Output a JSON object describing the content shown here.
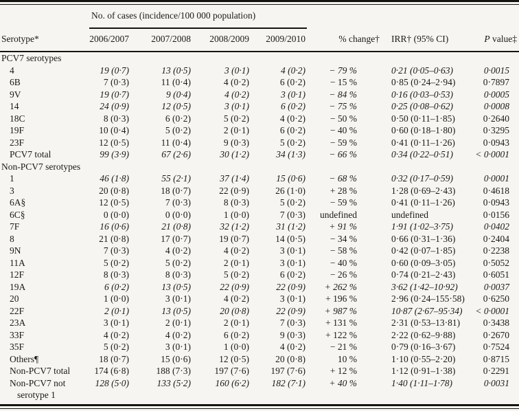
{
  "table": {
    "spanner": "No. of cases (incidence/100 000 population)",
    "columns": [
      "Serotype*",
      "2006/2007",
      "2007/2008",
      "2008/2009",
      "2009/2010",
      "% change†",
      "IRR† (95% CI)",
      "P value‡"
    ],
    "sections": [
      {
        "title": "PCV7 serotypes",
        "rows": [
          {
            "label": "4",
            "y": [
              "19 (0·7)",
              "13 (0·5)",
              "3 (0·1)",
              "4 (0·2)"
            ],
            "pct": "− 79 %",
            "irr": "0·21 (0·05–0·63)",
            "p": "0·0015",
            "sig": true
          },
          {
            "label": "6B",
            "y": [
              "7 (0·3)",
              "11 (0·4)",
              "4 (0·2)",
              "6 (0·2)"
            ],
            "pct": "− 15 %",
            "irr": "0·85 (0·24–2·94)",
            "p": "0·7897",
            "sig": false
          },
          {
            "label": "9V",
            "y": [
              "19 (0·7)",
              "9 (0·4)",
              "4 (0·2)",
              "3 (0·1)"
            ],
            "pct": "− 84 %",
            "irr": "0·16 (0·03–0·53)",
            "p": "0·0005",
            "sig": true
          },
          {
            "label": "14",
            "y": [
              "24 (0·9)",
              "12 (0·5)",
              "3 (0·1)",
              "6 (0·2)"
            ],
            "pct": "− 75 %",
            "irr": "0·25 (0·08–0·62)",
            "p": "0·0008",
            "sig": true
          },
          {
            "label": "18C",
            "y": [
              "8 (0·3)",
              "6 (0·2)",
              "5 (0·2)",
              "4 (0·2)"
            ],
            "pct": "− 50 %",
            "irr": "0·50 (0·11–1·85)",
            "p": "0·2640",
            "sig": false
          },
          {
            "label": "19F",
            "y": [
              "10 (0·4)",
              "5 (0·2)",
              "2 (0·1)",
              "6 (0·2)"
            ],
            "pct": "− 40 %",
            "irr": "0·60 (0·18–1·80)",
            "p": "0·3295",
            "sig": false
          },
          {
            "label": "23F",
            "y": [
              "12 (0·5)",
              "11 (0·4)",
              "9 (0·3)",
              "5 (0·2)"
            ],
            "pct": "− 59 %",
            "irr": "0·41 (0·11–1·26)",
            "p": "0·0943",
            "sig": false
          },
          {
            "label": "PCV7 total",
            "y": [
              "99 (3·9)",
              "67 (2·6)",
              "30 (1·2)",
              "34 (1·3)"
            ],
            "pct": "− 66 %",
            "irr": "0·34 (0·22–0·51)",
            "p": "< 0·0001",
            "sig": true
          }
        ]
      },
      {
        "title": "Non-PCV7 serotypes",
        "rows": [
          {
            "label": "1",
            "y": [
              "46 (1·8)",
              "55 (2·1)",
              "37 (1·4)",
              "15 (0·6)"
            ],
            "pct": "− 68 %",
            "irr": "0·32 (0·17–0·59)",
            "p": "0·0001",
            "sig": true
          },
          {
            "label": "3",
            "y": [
              "20 (0·8)",
              "18 (0·7)",
              "22 (0·9)",
              "26 (1·0)"
            ],
            "pct": "+ 28 %",
            "irr": "1·28 (0·69–2·43)",
            "p": "0·4618",
            "sig": false
          },
          {
            "label": "6A§",
            "y": [
              "12 (0·5)",
              "7 (0·3)",
              "8 (0·3)",
              "5 (0·2)"
            ],
            "pct": "− 59 %",
            "irr": "0·41 (0·11–1·26)",
            "p": "0·0943",
            "sig": false
          },
          {
            "label": "6C§",
            "y": [
              "0 (0·0)",
              "0 (0·0)",
              "1 (0·0)",
              "7 (0·3)"
            ],
            "pct": "undefined",
            "irr": "undefined",
            "p": "0·0156",
            "sig": false
          },
          {
            "label": "7F",
            "y": [
              "16 (0·6)",
              "21 (0·8)",
              "32 (1·2)",
              "31 (1·2)"
            ],
            "pct": "+ 91 %",
            "irr": "1·91 (1·02–3·75)",
            "p": "0·0402",
            "sig": true
          },
          {
            "label": "8",
            "y": [
              "21 (0·8)",
              "17 (0·7)",
              "19 (0·7)",
              "14 (0·5)"
            ],
            "pct": "− 34 %",
            "irr": "0·66 (0·31–1·36)",
            "p": "0·2404",
            "sig": false
          },
          {
            "label": "9N",
            "y": [
              "7 (0·3)",
              "4 (0·2)",
              "4 (0·2)",
              "3 (0·1)"
            ],
            "pct": "− 58 %",
            "irr": "0·42 (0·07–1·85)",
            "p": "0·2238",
            "sig": false
          },
          {
            "label": "11A",
            "y": [
              "5 (0·2)",
              "5 (0·2)",
              "2 (0·1)",
              "3 (0·1)"
            ],
            "pct": "− 40 %",
            "irr": "0·60 (0·09–3·05)",
            "p": "0·5052",
            "sig": false
          },
          {
            "label": "12F",
            "y": [
              "8 (0·3)",
              "8 (0·3)",
              "5 (0·2)",
              "6 (0·2)"
            ],
            "pct": "− 26 %",
            "irr": "0·74 (0·21–2·43)",
            "p": "0·6051",
            "sig": false
          },
          {
            "label": "19A",
            "y": [
              "6 (0·2)",
              "13 (0·5)",
              "22 (0·9)",
              "22 (0·9)"
            ],
            "pct": "+ 262 %",
            "irr": "3·62 (1·42–10·92)",
            "p": "0·0037",
            "sig": true
          },
          {
            "label": "20",
            "y": [
              "1 (0·0)",
              "3 (0·1)",
              "4 (0·2)",
              "3 (0·1)"
            ],
            "pct": "+ 196 %",
            "irr": "2·96 (0·24–155·58)",
            "p": "0·6250",
            "sig": false
          },
          {
            "label": "22F",
            "y": [
              "2 (0·1)",
              "13 (0·5)",
              "20 (0·8)",
              "22 (0·9)"
            ],
            "pct": "+ 987 %",
            "irr": "10·87 (2·67–95·34)",
            "p": "< 0·0001",
            "sig": true
          },
          {
            "label": "23A",
            "y": [
              "3 (0·1)",
              "2 (0·1)",
              "2 (0·1)",
              "7 (0·3)"
            ],
            "pct": "+ 131 %",
            "irr": "2·31 (0·53–13·81)",
            "p": "0·3438",
            "sig": false
          },
          {
            "label": "33F",
            "y": [
              "4 (0·2)",
              "4 (0·2)",
              "6 (0·2)",
              "9 (0·3)"
            ],
            "pct": "+ 122 %",
            "irr": "2·22 (0·62–9·88)",
            "p": "0·2670",
            "sig": false
          },
          {
            "label": "35F",
            "y": [
              "5 (0·2)",
              "3 (0·1)",
              "1 (0·0)",
              "4 (0·2)"
            ],
            "pct": "− 21 %",
            "irr": "0·79 (0·16–3·67)",
            "p": "0·7524",
            "sig": false
          },
          {
            "label": "Others¶",
            "y": [
              "18 (0·7)",
              "15 (0·6)",
              "12 (0·5)",
              "20 (0·8)"
            ],
            "pct": "10 %",
            "irr": "1·10 (0·55–2·20)",
            "p": "0·8715",
            "sig": false
          },
          {
            "label": "Non-PCV7 total",
            "y": [
              "174 (6·8)",
              "188 (7·3)",
              "197 (7·6)",
              "197 (7·6)"
            ],
            "pct": "+ 12 %",
            "irr": "1·12 (0·91–1·38)",
            "p": "0·2291",
            "sig": false
          },
          {
            "label": "Non-PCV7 not",
            "label2": "serotype 1",
            "y": [
              "128 (5·0)",
              "133 (5·2)",
              "160 (6·2)",
              "182 (7·1)"
            ],
            "pct": "+ 40 %",
            "irr": "1·40 (1·11–1·78)",
            "p": "0·0031",
            "sig": true
          }
        ]
      }
    ]
  }
}
